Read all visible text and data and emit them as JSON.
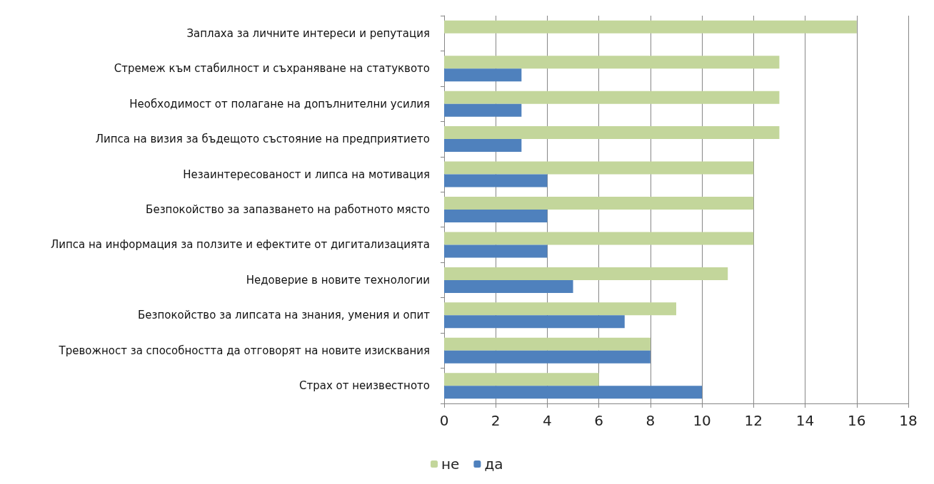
{
  "chart_data": {
    "type": "bar",
    "orientation": "horizontal",
    "categories": [
      "Заплаха за личните интереси и репутация",
      "Стремеж към стабилност и съхраняване на статуквото",
      "Необходимост от полагане на допълнителни усилия",
      "Липса на визия за бъдещото състояние на предприятието",
      "Незаинтересованост и липса на мотивация",
      "Безпокойство за запазването на работното място",
      "Липса на информация за ползите и ефектите от дигитализацията",
      "Недоверие в новите технологии",
      "Безпокойство за липсата на знания, умения и опит",
      "Тревожност за способността да отговорят на новите изисквания",
      "Страх от неизвестното"
    ],
    "series": [
      {
        "name": "не",
        "color": "#c3d69b",
        "values": [
          16,
          13,
          13,
          13,
          12,
          12,
          12,
          11,
          9,
          8,
          6
        ]
      },
      {
        "name": "да",
        "color": "#4f81bd",
        "values": [
          0,
          3,
          3,
          3,
          4,
          4,
          4,
          5,
          7,
          8,
          10
        ]
      }
    ],
    "xlim": [
      0,
      18
    ],
    "xticks": [
      0,
      2,
      4,
      6,
      8,
      10,
      12,
      14,
      16,
      18
    ],
    "grid": "x",
    "legend": "bottom"
  }
}
